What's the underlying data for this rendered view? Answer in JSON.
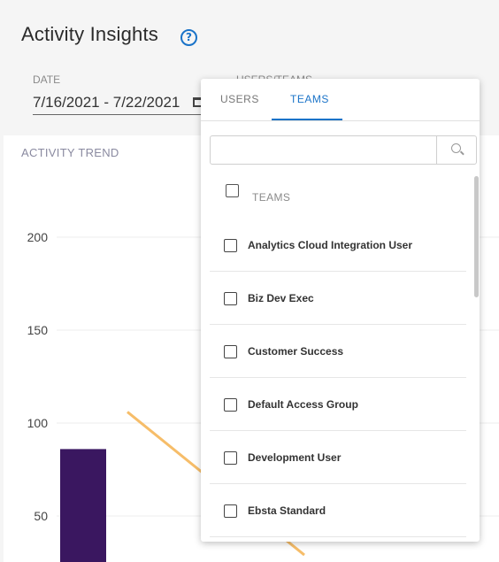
{
  "header": {
    "title": "Activity Insights",
    "help_icon": "help-circle-icon"
  },
  "filters": {
    "date_label": "DATE",
    "date_value": "7/16/2021 - 7/22/2021",
    "users_teams_label": "USERS/TEAMS"
  },
  "dropdown": {
    "tabs": [
      {
        "label": "USERS",
        "active": false
      },
      {
        "label": "TEAMS",
        "active": true
      }
    ],
    "search_placeholder": "",
    "header_label": "TEAMS",
    "items": [
      "Analytics Cloud Integration User",
      "Biz Dev Exec",
      "Customer Success",
      "Default Access Group",
      "Development User",
      "Ebsta Standard"
    ],
    "accent_color": "#1a73c8"
  },
  "chart": {
    "title": "ACTIVITY TREND"
  },
  "chart_data": {
    "type": "bar",
    "title": "ACTIVITY TREND",
    "yticks": [
      50,
      100,
      150,
      200
    ],
    "series": [
      {
        "type": "bar",
        "values": [
          86
        ],
        "color": "#3a1760"
      },
      {
        "type": "line",
        "values": [
          106,
          29
        ],
        "color": "#f6bd69"
      }
    ]
  }
}
